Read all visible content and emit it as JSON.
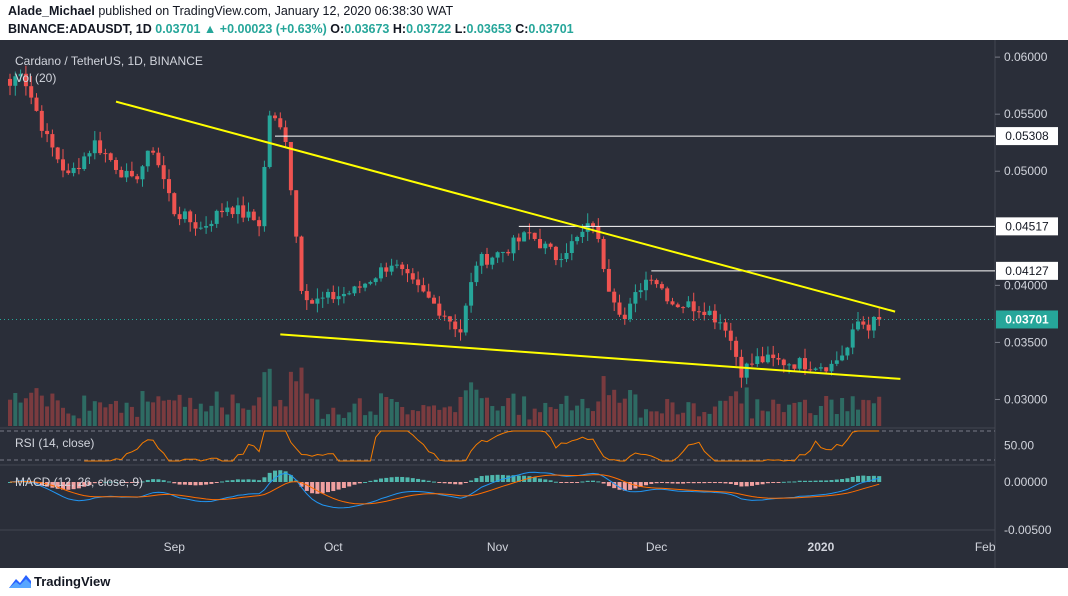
{
  "header": {
    "publisher": "Alade_Michael",
    "publish_text": "published on TradingView.com, January 12, 2020 06:38:30 WAT",
    "symbol": "BINANCE:ADAUSDT, 1D",
    "price": "0.03701",
    "change": "+0.00023 (+0.63%)",
    "o_label": "O:",
    "o": "0.03673",
    "h_label": "H:",
    "h": "0.03722",
    "l_label": "L:",
    "l": "0.03653",
    "c_label": "C:",
    "c": "0.03701"
  },
  "legend": {
    "title": "Cardano / TetherUS, 1D, BINANCE",
    "vol": "Vol (20)",
    "rsi": "RSI (14, close)",
    "macd": "MACD (12, 26, close, 9)"
  },
  "footer": {
    "brand": "TradingView"
  },
  "colors": {
    "background": "#2a2e39",
    "up": "#26a69a",
    "down": "#ef5350",
    "trendline": "#ffff00",
    "rsi": "#f57c00",
    "macd": "#2196f3",
    "signal": "#ff6d00"
  },
  "chart_data": {
    "type": "candlestick",
    "x_ticks": [
      "Sep",
      "Oct",
      "Nov",
      "Dec",
      "2020",
      "Feb"
    ],
    "price_axis": {
      "ticks": [
        "0.06000",
        "0.05500",
        "0.05000",
        "0.04000",
        "0.03500",
        "0.03000"
      ],
      "range": [
        0.0275,
        0.0615
      ]
    },
    "levels": [
      {
        "label": "0.05308",
        "value": 0.05308
      },
      {
        "label": "0.04517",
        "value": 0.04517
      },
      {
        "label": "0.04127",
        "value": 0.04127
      }
    ],
    "current_price": {
      "label": "0.03701",
      "value": 0.03701
    },
    "trendlines": [
      {
        "name": "descending-resistance",
        "points": [
          [
            "2019-08-21",
            0.0561
          ],
          [
            "2020-01-15",
            0.0377
          ]
        ]
      },
      {
        "name": "descending-support",
        "points": [
          [
            "2019-09-21",
            0.0357
          ],
          [
            "2020-01-16",
            0.0318
          ]
        ]
      }
    ],
    "price_anchors": [
      [
        "2019-08-01",
        0.0575
      ],
      [
        "2019-08-03",
        0.059
      ],
      [
        "2019-08-08",
        0.0528
      ],
      [
        "2019-08-12",
        0.0495
      ],
      [
        "2019-08-17",
        0.0525
      ],
      [
        "2019-08-24",
        0.049
      ],
      [
        "2019-08-28",
        0.052
      ],
      [
        "2019-09-01",
        0.0465
      ],
      [
        "2019-09-06",
        0.045
      ],
      [
        "2019-09-11",
        0.047
      ],
      [
        "2019-09-17",
        0.0455
      ],
      [
        "2019-09-19",
        0.055
      ],
      [
        "2019-09-22",
        0.053
      ],
      [
        "2019-09-25",
        0.04
      ],
      [
        "2019-09-27",
        0.0385
      ],
      [
        "2019-10-05",
        0.0395
      ],
      [
        "2019-10-12",
        0.042
      ],
      [
        "2019-10-16",
        0.04
      ],
      [
        "2019-10-22",
        0.0375
      ],
      [
        "2019-10-25",
        0.036
      ],
      [
        "2019-10-28",
        0.042
      ],
      [
        "2019-11-02",
        0.043
      ],
      [
        "2019-11-07",
        0.0445
      ],
      [
        "2019-11-12",
        0.0425
      ],
      [
        "2019-11-16",
        0.044
      ],
      [
        "2019-11-19",
        0.0455
      ],
      [
        "2019-11-22",
        0.04
      ],
      [
        "2019-11-25",
        0.037
      ],
      [
        "2019-11-28",
        0.04
      ],
      [
        "2019-11-30",
        0.041
      ],
      [
        "2019-12-04",
        0.0385
      ],
      [
        "2019-12-10",
        0.038
      ],
      [
        "2019-12-14",
        0.0365
      ],
      [
        "2019-12-17",
        0.0325
      ],
      [
        "2019-12-20",
        0.0335
      ],
      [
        "2019-12-27",
        0.0332
      ],
      [
        "2020-01-03",
        0.033
      ],
      [
        "2020-01-06",
        0.0345
      ],
      [
        "2020-01-08",
        0.0368
      ],
      [
        "2020-01-10",
        0.0365
      ],
      [
        "2020-01-12",
        0.037
      ]
    ],
    "rsi": {
      "ticks": [
        "50.00"
      ],
      "level": 50
    },
    "macd": {
      "ticks": [
        "0.00000",
        "-0.00500"
      ]
    }
  }
}
